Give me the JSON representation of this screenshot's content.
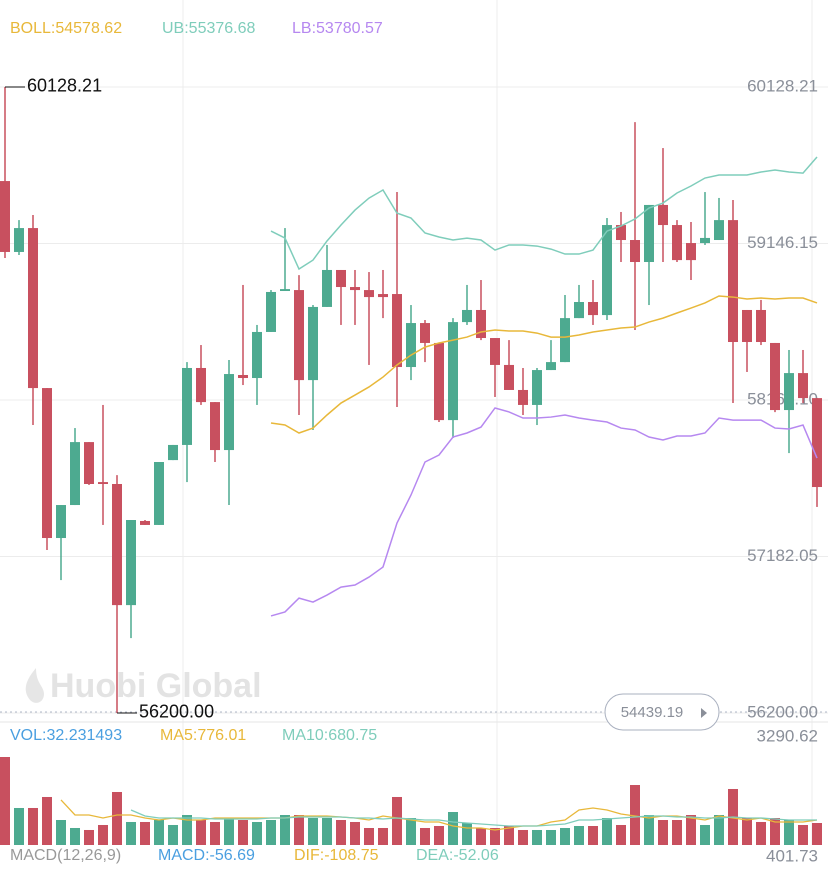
{
  "chart_data": {
    "type": "candlestick",
    "up_color": "#4daa90",
    "down_color": "#c8505f",
    "ylim": [
      56143.5,
      60203.5
    ],
    "yticks": [
      60128.21,
      59146.15,
      {
        "value": 58164.1,
        "label": "58164.10"
      },
      57182.05,
      {
        "value": 56200,
        "label": "56200.00"
      }
    ],
    "grid": true,
    "open": [
      59538,
      59093,
      59243,
      58239,
      57298,
      57505,
      57900,
      57649,
      57637,
      56877,
      57405,
      57380,
      57787,
      57882,
      58365,
      58151,
      57850,
      58321,
      58302,
      58591,
      58848,
      58854,
      58289,
      58748,
      58980,
      58873,
      58854,
      58829,
      58829,
      58371,
      58647,
      58522,
      58038,
      58653,
      58729,
      58553,
      58384,
      58227,
      58133,
      58352,
      58402,
      58678,
      58779,
      58697,
      59262,
      59168,
      59030,
      59388,
      59262,
      59149,
      59149,
      59168,
      59293,
      58729,
      58729,
      58522,
      58101,
      58333,
      58176
    ],
    "high": [
      60128.21,
      59293,
      59325,
      58239,
      57505,
      57988,
      57900,
      58133,
      57693,
      57411,
      57411,
      57775,
      57882,
      58402,
      58509,
      58151,
      58415,
      58886,
      58635,
      58854,
      59243,
      58948,
      58760,
      59137,
      58980,
      58980,
      58967,
      58980,
      59469,
      58760,
      58666,
      58522,
      58678,
      58886,
      58917,
      58553,
      58540,
      58365,
      58365,
      58540,
      58823,
      58886,
      58917,
      59306,
      59344,
      59908,
      59388,
      59745,
      59293,
      59281,
      59469,
      59432,
      59419,
      58729,
      58792,
      58522,
      58478,
      58478,
      58176
    ],
    "low": [
      59055,
      59074,
      58007,
      57223,
      57034,
      57505,
      57631,
      57380,
      56200,
      56670,
      57380,
      57380,
      57787,
      57649,
      58133,
      57775,
      57505,
      58258,
      58133,
      58591,
      58848,
      58070,
      57976,
      58748,
      58635,
      58635,
      58384,
      58678,
      58120,
      58289,
      58402,
      58026,
      57926,
      58635,
      58540,
      58183,
      58227,
      58070,
      58007,
      58352,
      58402,
      58678,
      58635,
      58666,
      59030,
      58603,
      58760,
      59030,
      59030,
      58917,
      59137,
      59168,
      58145,
      58340,
      58509,
      58088,
      57831,
      58145,
      57493
    ],
    "close": [
      59093,
      59243,
      58239,
      57298,
      57505,
      57900,
      57637,
      57637,
      56877,
      57411,
      57380,
      57775,
      57882,
      58365,
      58151,
      57850,
      58327,
      58302,
      58591,
      58842,
      58860,
      58289,
      58748,
      58980,
      58873,
      58854,
      58810,
      58810,
      58371,
      58647,
      58522,
      58038,
      58653,
      58729,
      58553,
      58384,
      58227,
      58133,
      58352,
      58402,
      58678,
      58779,
      58697,
      59262,
      59168,
      59030,
      59388,
      59262,
      59042,
      59042,
      59181,
      59293,
      58528,
      58528,
      58528,
      58101,
      58333,
      58176,
      57618
    ],
    "high_marker": 60128.21,
    "low_marker": {
      "value": 56200,
      "label": "56200.00"
    },
    "series": [
      {
        "name": "BOLL:54578.62",
        "color": "#e8b83a",
        "values": [
          null,
          null,
          null,
          null,
          null,
          null,
          null,
          null,
          null,
          null,
          null,
          null,
          null,
          null,
          null,
          null,
          null,
          null,
          null,
          58020,
          58007,
          57957,
          57988,
          58070,
          58145,
          58195,
          58246,
          58308,
          58384,
          58446,
          58496,
          58522,
          58540,
          58559,
          58591,
          58603,
          58597,
          58597,
          58584,
          58559,
          58559,
          58572,
          58591,
          58603,
          58616,
          58622,
          58653,
          58678,
          58710,
          58741,
          58773,
          58817,
          58810,
          58798,
          58804,
          58798,
          58804,
          58804,
          58773
        ]
      },
      {
        "name": "UB:55376.68",
        "color": "#7fcdbb",
        "values": [
          null,
          null,
          null,
          null,
          null,
          null,
          null,
          null,
          null,
          null,
          null,
          null,
          null,
          null,
          null,
          null,
          null,
          null,
          null,
          59224,
          59180,
          58986,
          59042,
          59162,
          59262,
          59356,
          59431,
          59482,
          59337,
          59306,
          59212,
          59187,
          59168,
          59180,
          59168,
          59105,
          59137,
          59137,
          59130,
          59111,
          59080,
          59080,
          59105,
          59224,
          59256,
          59300,
          59369,
          59400,
          59463,
          59507,
          59557,
          59576,
          59576,
          59576,
          59595,
          59607,
          59595,
          59588,
          59689
        ]
      },
      {
        "name": "LB:53780.57",
        "color": "#b688f0",
        "values": [
          null,
          null,
          null,
          null,
          null,
          null,
          null,
          null,
          null,
          null,
          null,
          null,
          null,
          null,
          null,
          null,
          null,
          null,
          null,
          56809,
          56834,
          56921,
          56896,
          56940,
          56990,
          57003,
          57053,
          57116,
          57392,
          57568,
          57775,
          57819,
          57932,
          57957,
          57994,
          58114,
          58089,
          58051,
          58051,
          58057,
          58070,
          58051,
          58038,
          58026,
          57988,
          57976,
          57932,
          57913,
          57938,
          57938,
          57957,
          58051,
          58038,
          58038,
          58038,
          57988,
          57982,
          58007,
          57800
        ]
      }
    ],
    "last_price": "54439.19",
    "watermark": "Huobi Global",
    "volume": {
      "name": "VOL:32.231493",
      "color": "#4a9fe0",
      "ylim": [
        0,
        3290.62
      ],
      "yticks": [
        3290.62
      ],
      "values": [
        3048,
        1282,
        1282,
        1663,
        866,
        589,
        520,
        693,
        1836,
        797,
        797,
        866,
        693,
        1039,
        866,
        797,
        935,
        866,
        797,
        866,
        1039,
        1039,
        935,
        935,
        866,
        797,
        589,
        589,
        1663,
        935,
        589,
        658,
        1143,
        762,
        589,
        589,
        658,
        520,
        520,
        520,
        589,
        658,
        658,
        935,
        693,
        2078,
        1039,
        866,
        866,
        1039,
        693,
        1039,
        1940,
        935,
        797,
        935,
        866,
        693,
        762
      ],
      "series": [
        {
          "name": "MA5:776.01",
          "color": "#e8b83a",
          "values": [
            null,
            null,
            null,
            null,
            1559,
            1039,
            1039,
            935,
            1039,
            1039,
            935,
            866,
            935,
            866,
            866,
            935,
            935,
            935,
            935,
            935,
            935,
            1004,
            1004,
            1004,
            970,
            935,
            866,
            1004,
            935,
            866,
            797,
            797,
            658,
            589,
            589,
            520,
            589,
            658,
            658,
            797,
            866,
            1212,
            1282,
            1212,
            1074,
            1004,
            935,
            1004,
            1004,
            935,
            866,
            1004,
            935,
            866,
            935,
            797,
            797,
            797,
            866
          ]
        },
        {
          "name": "MA10:680.75",
          "color": "#7fcdbb",
          "values": [
            null,
            null,
            null,
            null,
            null,
            null,
            null,
            null,
            null,
            1212,
            1004,
            935,
            935,
            935,
            935,
            901,
            901,
            901,
            901,
            935,
            935,
            970,
            970,
            970,
            970,
            935,
            935,
            901,
            935,
            901,
            866,
            866,
            797,
            762,
            727,
            693,
            658,
            658,
            658,
            693,
            727,
            866,
            866,
            901,
            935,
            970,
            1004,
            1004,
            970,
            970,
            935,
            935,
            970,
            935,
            935,
            901,
            866,
            866,
            866
          ]
        }
      ]
    },
    "macd": {
      "labels": [
        {
          "text": "MACD(12,26,9)",
          "color": "#999999"
        },
        {
          "text": "MACD:-56.69",
          "color": "#4a9fe0"
        },
        {
          "text": "DIF:-108.75",
          "color": "#e8b83a"
        },
        {
          "text": "DEA:-52.06",
          "color": "#7fcdbb"
        }
      ],
      "axis_label": "401.73"
    }
  }
}
